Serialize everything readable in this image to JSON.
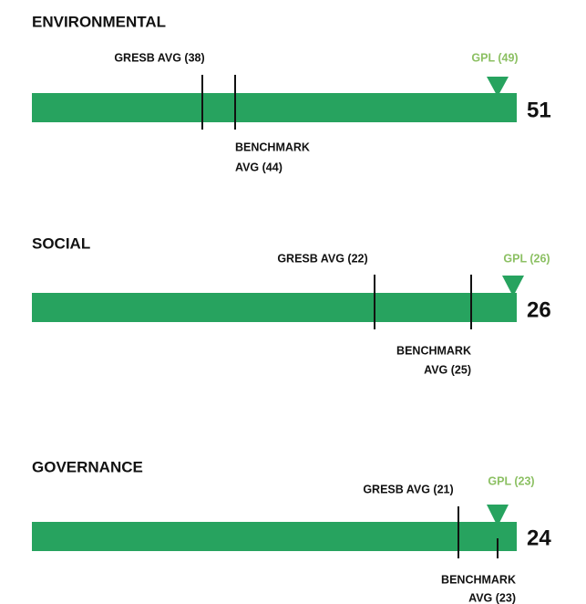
{
  "sections": [
    {
      "title": "ENVIRONMENTAL",
      "gresb": "GRESB AVG (38)",
      "benchmark": [
        "BENCHMARK",
        "AVG (44)"
      ],
      "gpl": "GPL (49)",
      "score": "51"
    },
    {
      "title": "SOCIAL",
      "gresb": "GRESB AVG (22)",
      "benchmark": [
        "BENCHMARK",
        "AVG (25)"
      ],
      "gpl": "GPL (26)",
      "score": "26"
    },
    {
      "title": "GOVERNANCE",
      "gresb": "GRESB AVG (21)",
      "benchmark": [
        "BENCHMARK",
        "AVG (23)"
      ],
      "gpl": "GPL (23)",
      "score": "24"
    }
  ]
}
